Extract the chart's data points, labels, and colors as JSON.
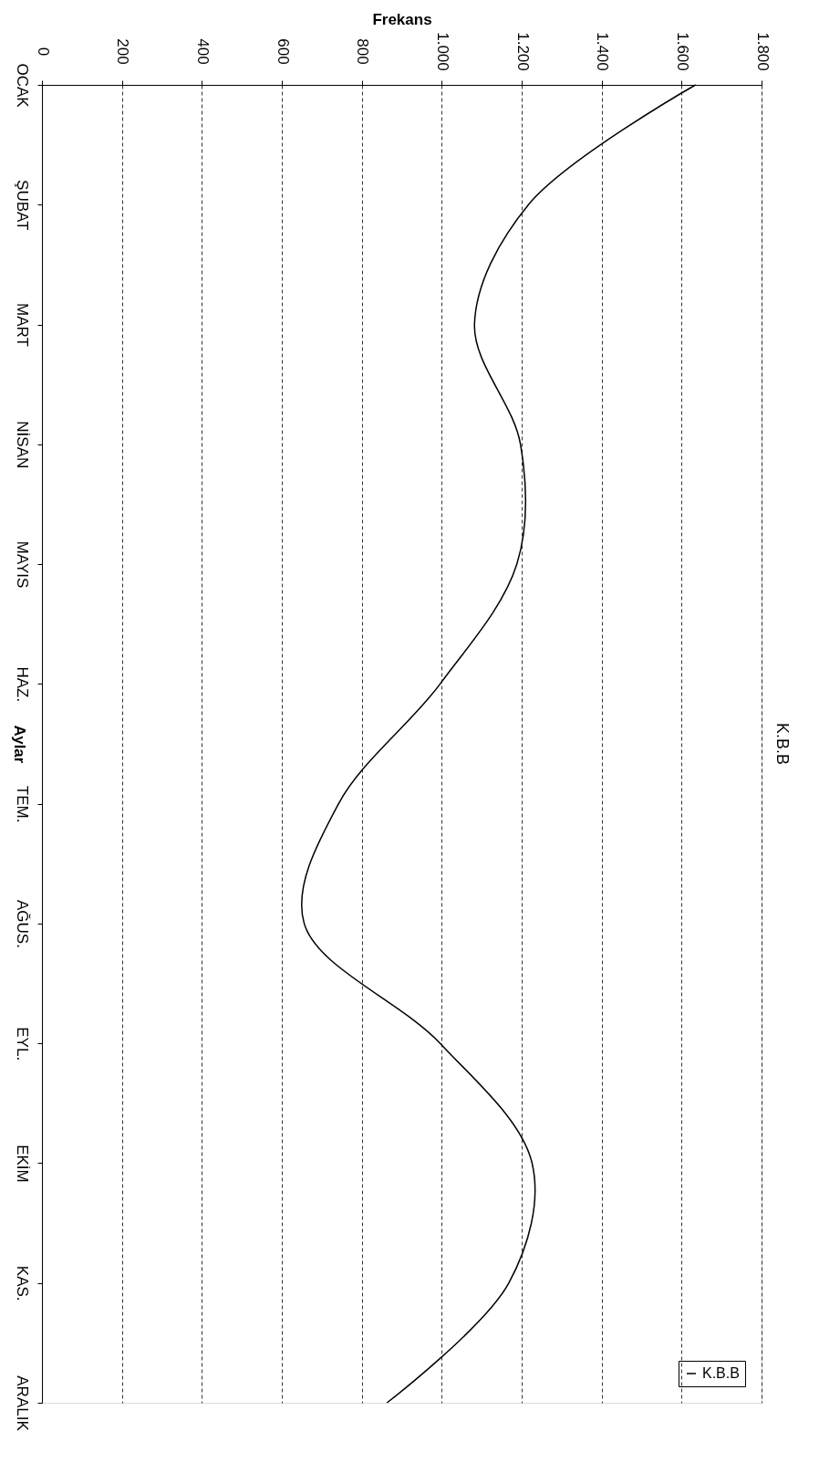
{
  "chart_data": {
    "type": "line",
    "orientation": "horizontal",
    "title": "K.B.B",
    "xlabel": "Frekans",
    "ylabel": "Aylar",
    "categories": [
      "OCAK",
      "ŞUBAT",
      "MART",
      "NİSAN",
      "MAYIS",
      "HAZ.",
      "TEM.",
      "AĞUS.",
      "EYL.",
      "EKİM",
      "KAS.",
      "ARALIK"
    ],
    "series": [
      {
        "name": "K.B.B",
        "color": "#000000",
        "values": [
          1635,
          1217,
          1082,
          1197,
          1188,
          996,
          742,
          656,
          996,
          1226,
          1168,
          863
        ]
      }
    ],
    "xlim": [
      0,
      1800
    ],
    "xticks": [
      0,
      200,
      400,
      600,
      800,
      {
        "value": 1000,
        "label": "1.000"
      },
      {
        "value": 1200,
        "label": "1.200"
      },
      {
        "value": 1400,
        "label": "1.400"
      },
      {
        "value": 1600,
        "label": "1.600"
      },
      {
        "value": 1800,
        "label": "1.800"
      }
    ],
    "grid": "x",
    "legend": "right",
    "marker": "none",
    "line_style": "solid"
  }
}
